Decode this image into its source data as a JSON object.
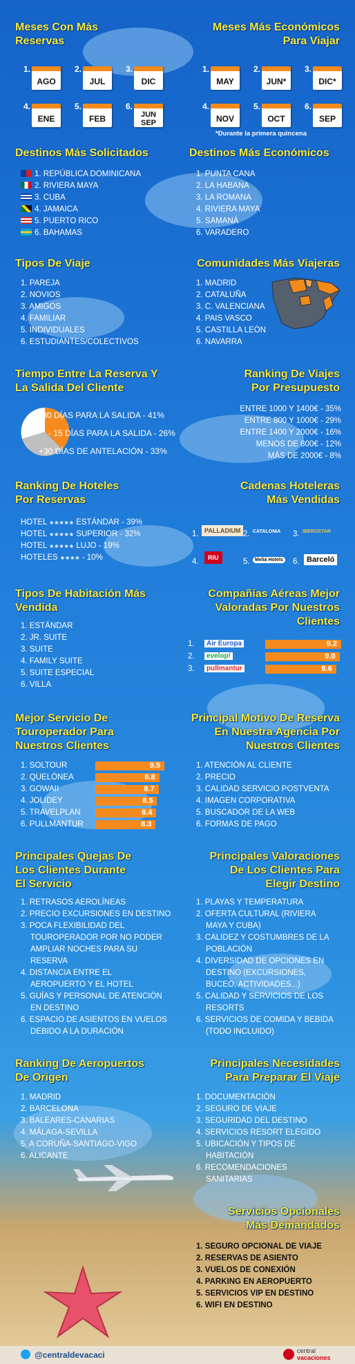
{
  "meses_reservas": {
    "title_1": "Meses Con Más",
    "title_2": "Reservas",
    "items": [
      {
        "n": "1.",
        "m": "AGO"
      },
      {
        "n": "2.",
        "m": "JUL"
      },
      {
        "n": "3.",
        "m": "DIC"
      },
      {
        "n": "4.",
        "m": "ENE"
      },
      {
        "n": "5.",
        "m": "FEB"
      },
      {
        "n": "6.",
        "m": "JUN",
        "m2": "SEP"
      }
    ]
  },
  "meses_economicos": {
    "title_1": "Meses Más Económicos",
    "title_2": "Para Viajar",
    "items": [
      {
        "n": "1.",
        "m": "MAY"
      },
      {
        "n": "2.",
        "m": "JUN*"
      },
      {
        "n": "3.",
        "m": "DIC*"
      },
      {
        "n": "4.",
        "m": "NOV"
      },
      {
        "n": "5.",
        "m": "OCT"
      },
      {
        "n": "6.",
        "m": "SEP"
      }
    ],
    "note": "*Durante la primera quincena"
  },
  "destinos_solicitados": {
    "title": "Destinos Más Solicitados",
    "items": [
      "1. REPÚBLICA DOMINICANA",
      "2. RIVIERA MAYA",
      "3. CUBA",
      "4. JAMAICA",
      "5. PUERTO RICO",
      "6. BAHAMAS"
    ]
  },
  "destinos_economicos": {
    "title": "Destinos Más Económicos",
    "items": [
      "1. PUNTA CANA",
      "2. LA HABANA",
      "3. LA ROMANA",
      "4. RIVIERA MAYA",
      "5. SAMANÁ",
      "6. VARADERO"
    ]
  },
  "tipos_viaje": {
    "title": "Tipos De Viaje",
    "items": [
      "1. PAREJA",
      "2. NOVIOS",
      "3. AMIGOS",
      "4. FAMILIAR",
      "5. INDIVIDUALES",
      "6. ESTUDIANTES/COLECTIVOS"
    ]
  },
  "comunidades": {
    "title": "Comunidades Más Viajeras",
    "items": [
      "1. MADRID",
      "2. CATALUÑA",
      "3. C. VALENCIANA",
      "4. PAIS VASCO",
      "5. CASTILLA LEÓN",
      "6. NAVARRA"
    ]
  },
  "tiempo_reserva": {
    "title_1": "Tiempo Entre La Reserva Y",
    "title_2": "La Salida Del  Cliente",
    "items": [
      "15-30 DÍAS PARA LA SALIDA - 41%",
      "- 15 DÍAS PARA LA SALIDA - 26%",
      "+30 DÍAS DE ANTELACIÓN - 33%"
    ]
  },
  "ranking_presupuesto": {
    "title_1": "Ranking De Viajes",
    "title_2": "Por Presupuesto",
    "items": [
      "ENTRE 1000 Y 1400€ - 35%",
      "ENTRE 800 Y 1000€ - 29%",
      "ENTRE 1400 Y 2000€ - 16%",
      "MENOS DE 800€ - 12%",
      "MÁS DE 2000€ - 8%"
    ]
  },
  "ranking_hoteles": {
    "title_1": "Ranking De Hoteles",
    "title_2": "Por Reservas",
    "items": [
      {
        "a": "HOTEL",
        "s": "★★★★★",
        "b": "ESTÁNDAR - 39%"
      },
      {
        "a": "HOTEL",
        "s": "★★★★★",
        "b": "SUPERIOR - 32%"
      },
      {
        "a": "HOTEL",
        "s": "★★★★★",
        "b": "LUJO - 19%"
      },
      {
        "a": "HOTELES",
        "s": "★★★★",
        "b": "- 10%"
      }
    ]
  },
  "cadenas": {
    "title_1": "Cadenas Hoteleras",
    "title_2": "Más Vendidas",
    "items": [
      {
        "n": "1.",
        "name": "PALLADIUM"
      },
      {
        "n": "2.",
        "name": "CATALONIA"
      },
      {
        "n": "3.",
        "name": "IBEROSTAR"
      },
      {
        "n": "4.",
        "name": "RIU"
      },
      {
        "n": "5.",
        "name": "Meliá Hotels"
      },
      {
        "n": "6.",
        "name": "Barceló"
      }
    ]
  },
  "tipos_habitacion": {
    "title_1": "Tipos De Habitación Más",
    "title_2": "Vendida",
    "items": [
      "1. ESTÁNDAR",
      "2. JR. SUITE",
      "3. SUITE",
      "4. FAMILY SUITE",
      "5. SUITE ESPECIAL",
      "6. VILLA"
    ]
  },
  "companias": {
    "title_1": "Compañías Aéreas Mejor",
    "title_2": "Valoradas Por Nuestros",
    "title_3": "Clientes",
    "items": [
      {
        "n": "1.",
        "name": "Air Europa",
        "score": "9.2"
      },
      {
        "n": "2.",
        "name": "evelop!",
        "score": "9.0"
      },
      {
        "n": "3.",
        "name": "pullmantur",
        "score": "8.6"
      }
    ]
  },
  "touroperador": {
    "title_1": "Mejor Servicio De",
    "title_2": "Touroperador Para",
    "title_3": "Nuestros Clientes",
    "items": [
      {
        "name": "1. SOLTOUR",
        "score": "9.5"
      },
      {
        "name": "2. QUELÓNEA",
        "score": "8.8"
      },
      {
        "name": "3. GOWAII",
        "score": "8.7"
      },
      {
        "name": "4. JOLIDEY",
        "score": "8.5"
      },
      {
        "name": "5. TRAVELPLAN",
        "score": "8.4"
      },
      {
        "name": "6. PULLMANTUR",
        "score": "8.3"
      }
    ]
  },
  "motivo": {
    "title_1": "Principal Motivo De Reserva",
    "title_2": "En Nuestra Agencia Por",
    "title_3": "Nuestros Clientes",
    "items": [
      "1. ATENCIÓN AL CLIENTE",
      "2. PRECIO",
      "3. CALIDAD SERVICIO POSTVENTA",
      "4. IMAGEN CORPORATIVA",
      "5. BUSCADOR DE LA WEB",
      "6. FORMAS DE PAGO"
    ]
  },
  "quejas": {
    "title_1": "Principales Quejas De",
    "title_2": "Los Clientes Durante",
    "title_3": "El Servicio",
    "lines": [
      "1. RETRASOS AEROLÍNEAS",
      "2. PRECIO EXCURSIONES EN DESTINO",
      "3. POCA FLEXIBILIDAD DEL",
      "TOUROPERADOR POR NO PODER",
      "AMPLIAR NOCHES PARA SU",
      "RESERVA",
      "4. DISTANCIA ENTRE EL",
      "AEROPUERTO Y EL HOTEL",
      "5. GUÍAS Y PERSONAL DE ATENCIÓN",
      "EN DESTINO",
      "6. ESPACIO DE ASIENTOS EN VUELOS",
      "DEBIDO A LA DURACIÓN"
    ]
  },
  "valoraciones": {
    "title_1": "Principales Valoraciones",
    "title_2": "De Los Clientes Para",
    "title_3": "Elegir Destino",
    "lines": [
      "1. PLAYAS Y TEMPERATURA",
      "2. OFERTA CULTURAL (RIVIERA",
      "MAYA Y CUBA)",
      "3. CALIDEZ Y COSTUMBRES DE LA",
      "POBLACIÓN",
      "4. DIVERSIDAD DE OPCIONES EN",
      "DESTINO (EXCURSIONES,",
      "BUCEO, ACTIVIDADES...)",
      "5. CALIDAD Y SERVICIOS DE LOS",
      "RESORTS",
      "6. SERVICIOS DE COMIDA Y BEBIDA",
      "(TODO INCLUIDO)"
    ]
  },
  "aeropuertos": {
    "title_1": "Ranking De Aeropuertos",
    "title_2": "De Origen",
    "items": [
      "1. MADRID",
      "2. BARCELONA",
      "3. BALEARES-CANARIAS",
      "4. MÁLAGA-SEVILLA",
      "5. A CORUÑA-SANTIAGO-VIGO",
      "6. ALICANTE"
    ]
  },
  "necesidades": {
    "title_1": "Principales Necesidades",
    "title_2": "Para Preparar El Viaje",
    "lines": [
      "1. DOCUMENTACIÓN",
      "2. SEGURO DE VIAJE",
      "3. SEGURIDAD DEL DESTINO",
      "4. SERVICIOS RESORT ELEGIDO",
      "5. UBICACIÓN Y TIPOS DE",
      "HABITACIÓN",
      "6. RECOMENDACIONES",
      "SANITARIAS"
    ]
  },
  "opcionales": {
    "title_1": "Servicios Opcionales",
    "title_2": "Más Demandados",
    "items": [
      "1. SEGURO OPCIONAL DE VIAJE",
      "2. RESERVAS DE ASIENTO",
      "3. VUELOS DE CONEXIÓN",
      "4. PARKING EN AEROPUERTO",
      "5. SERVICIOS VIP EN DESTINO",
      "6. WIFI EN DESTINO"
    ]
  },
  "footer": {
    "twitter": "@centraldevacaci",
    "brand_1": "central",
    "brand_2": "vacaciones"
  },
  "colors": {
    "accent": "#f4e63b",
    "bar": "#f58b1f",
    "background": "#1a6fd1"
  }
}
